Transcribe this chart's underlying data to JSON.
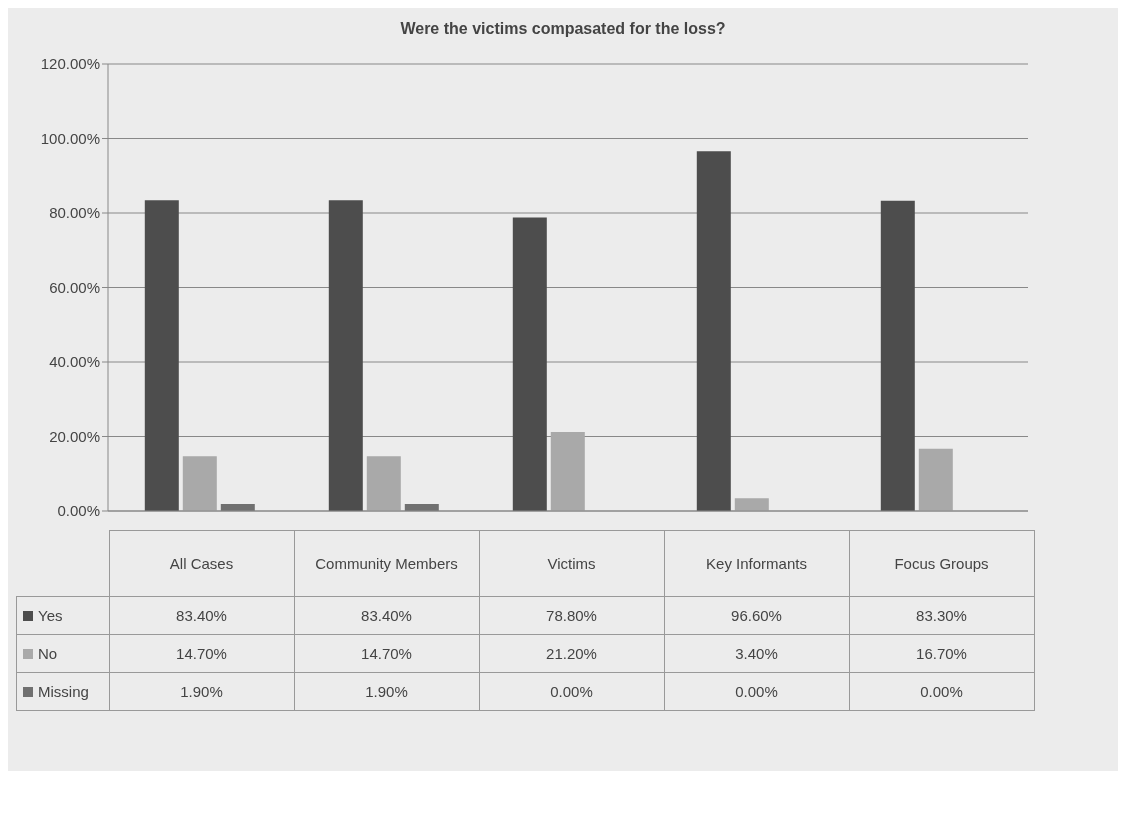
{
  "chart_data": {
    "type": "bar",
    "title": "Were the victims compasated for the loss?",
    "categories": [
      "All Cases",
      "Community Members",
      "Victims",
      "Key Informants",
      "Focus Groups"
    ],
    "series": [
      {
        "name": "Yes",
        "color": "#4d4d4d",
        "values": [
          83.4,
          83.4,
          78.8,
          96.6,
          83.3
        ],
        "value_labels": [
          "83.40%",
          "83.40%",
          "78.80%",
          "96.60%",
          "83.30%"
        ]
      },
      {
        "name": "No",
        "color": "#a9a9a9",
        "values": [
          14.7,
          14.7,
          21.2,
          3.4,
          16.7
        ],
        "value_labels": [
          "14.70%",
          "14.70%",
          "21.20%",
          "3.40%",
          "16.70%"
        ]
      },
      {
        "name": "Missing",
        "color": "#707070",
        "values": [
          1.9,
          1.9,
          0,
          0,
          0
        ],
        "value_labels": [
          "1.90%",
          "1.90%",
          "0.00%",
          "0.00%",
          "0.00%"
        ]
      }
    ],
    "ylim": [
      0,
      120
    ],
    "yticks": [
      {
        "value": 0,
        "label": "0.00%"
      },
      {
        "value": 20,
        "label": "20.00%"
      },
      {
        "value": 40,
        "label": "40.00%"
      },
      {
        "value": 60,
        "label": "60.00%"
      },
      {
        "value": 80,
        "label": "80.00%"
      },
      {
        "value": 100,
        "label": "100.00%"
      },
      {
        "value": 120,
        "label": "120.00%"
      }
    ],
    "grid": "y",
    "legend": "bottom"
  }
}
